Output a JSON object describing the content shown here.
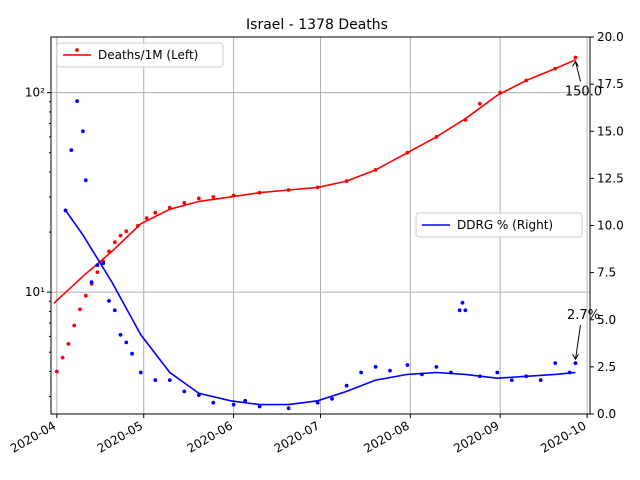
{
  "chart_data": {
    "type": "line",
    "title": "Israel - 1378 Deaths",
    "x_ticks": [
      "2020-04",
      "2020-05",
      "2020-06",
      "2020-07",
      "2020-08",
      "2020-09",
      "2020-10"
    ],
    "x_range": [
      "2020-03-30",
      "2020-10-02"
    ],
    "left_axis": {
      "scale": "log",
      "range": [
        2.45,
        190
      ],
      "ticks": [
        {
          "value": 10,
          "label": "10¹"
        },
        {
          "value": 100,
          "label": "10²"
        }
      ]
    },
    "right_axis": {
      "scale": "linear",
      "range": [
        0,
        20
      ],
      "ticks": [
        "0.0",
        "2.5",
        "5.0",
        "7.5",
        "10.0",
        "12.5",
        "15.0",
        "17.5",
        "20.0"
      ]
    },
    "grid": true,
    "legends": [
      {
        "label": "Deaths/1M (Left)",
        "position": "upper-left"
      },
      {
        "label": "DDRG % (Right)",
        "position": "center-right"
      }
    ],
    "series": [
      {
        "name": "Deaths/1M (Left)",
        "axis": "left",
        "style": "points",
        "color": "#ff0000",
        "points": [
          [
            "2020-04-01",
            4.0
          ],
          [
            "2020-04-03",
            4.7
          ],
          [
            "2020-04-05",
            5.5
          ],
          [
            "2020-04-07",
            6.8
          ],
          [
            "2020-04-09",
            8.2
          ],
          [
            "2020-04-11",
            9.6
          ],
          [
            "2020-04-13",
            11.0
          ],
          [
            "2020-04-15",
            12.6
          ],
          [
            "2020-04-17",
            14.2
          ],
          [
            "2020-04-19",
            16.0
          ],
          [
            "2020-04-21",
            17.8
          ],
          [
            "2020-04-23",
            19.2
          ],
          [
            "2020-04-25",
            20.2
          ],
          [
            "2020-04-29",
            21.5
          ],
          [
            "2020-05-02",
            23.5
          ],
          [
            "2020-05-05",
            25.0
          ],
          [
            "2020-05-10",
            26.5
          ],
          [
            "2020-05-15",
            28.0
          ],
          [
            "2020-05-20",
            29.5
          ],
          [
            "2020-05-25",
            30.0
          ],
          [
            "2020-06-01",
            30.5
          ],
          [
            "2020-06-10",
            31.5
          ],
          [
            "2020-06-20",
            32.5
          ],
          [
            "2020-06-30",
            33.5
          ],
          [
            "2020-07-10",
            36.0
          ],
          [
            "2020-07-20",
            41.0
          ],
          [
            "2020-07-31",
            50.0
          ],
          [
            "2020-08-10",
            60.0
          ],
          [
            "2020-08-20",
            73.0
          ],
          [
            "2020-08-25",
            88.0
          ],
          [
            "2020-09-01",
            100.0
          ],
          [
            "2020-09-10",
            115.0
          ],
          [
            "2020-09-20",
            132.0
          ],
          [
            "2020-09-27",
            150.0
          ]
        ]
      },
      {
        "name": "Deaths/1M (Left)",
        "axis": "left",
        "style": "line",
        "color": "#ff0000",
        "points": [
          [
            "2020-03-31",
            8.8
          ],
          [
            "2020-04-10",
            12.0
          ],
          [
            "2020-04-20",
            16.0
          ],
          [
            "2020-04-30",
            22.0
          ],
          [
            "2020-05-10",
            26.0
          ],
          [
            "2020-05-20",
            28.5
          ],
          [
            "2020-05-31",
            30.0
          ],
          [
            "2020-06-10",
            31.5
          ],
          [
            "2020-06-20",
            32.5
          ],
          [
            "2020-06-30",
            33.5
          ],
          [
            "2020-07-10",
            36.0
          ],
          [
            "2020-07-20",
            41.0
          ],
          [
            "2020-07-31",
            50.0
          ],
          [
            "2020-08-10",
            60.0
          ],
          [
            "2020-08-20",
            74.0
          ],
          [
            "2020-08-31",
            97.0
          ],
          [
            "2020-09-10",
            115.0
          ],
          [
            "2020-09-20",
            132.0
          ],
          [
            "2020-09-27",
            146.0
          ]
        ]
      },
      {
        "name": "DDRG % (Right)",
        "axis": "right",
        "style": "points",
        "color": "#0000ff",
        "points": [
          [
            "2020-04-04",
            10.8
          ],
          [
            "2020-04-06",
            14.0
          ],
          [
            "2020-04-08",
            16.6
          ],
          [
            "2020-04-10",
            15.0
          ],
          [
            "2020-04-11",
            12.4
          ],
          [
            "2020-04-13",
            7.0
          ],
          [
            "2020-04-15",
            7.9
          ],
          [
            "2020-04-17",
            8.0
          ],
          [
            "2020-04-19",
            6.0
          ],
          [
            "2020-04-21",
            5.5
          ],
          [
            "2020-04-23",
            4.2
          ],
          [
            "2020-04-25",
            3.8
          ],
          [
            "2020-04-27",
            3.2
          ],
          [
            "2020-04-30",
            2.2
          ],
          [
            "2020-05-05",
            1.8
          ],
          [
            "2020-05-10",
            1.8
          ],
          [
            "2020-05-15",
            1.2
          ],
          [
            "2020-05-20",
            1.0
          ],
          [
            "2020-05-25",
            0.6
          ],
          [
            "2020-06-01",
            0.5
          ],
          [
            "2020-06-05",
            0.7
          ],
          [
            "2020-06-10",
            0.4
          ],
          [
            "2020-06-20",
            0.3
          ],
          [
            "2020-06-30",
            0.6
          ],
          [
            "2020-07-05",
            0.8
          ],
          [
            "2020-07-10",
            1.5
          ],
          [
            "2020-07-15",
            2.2
          ],
          [
            "2020-07-20",
            2.5
          ],
          [
            "2020-07-25",
            2.3
          ],
          [
            "2020-07-31",
            2.6
          ],
          [
            "2020-08-05",
            2.1
          ],
          [
            "2020-08-10",
            2.5
          ],
          [
            "2020-08-15",
            2.2
          ],
          [
            "2020-08-18",
            5.5
          ],
          [
            "2020-08-19",
            5.9
          ],
          [
            "2020-08-20",
            5.5
          ],
          [
            "2020-08-25",
            2.0
          ],
          [
            "2020-08-31",
            2.2
          ],
          [
            "2020-09-05",
            1.8
          ],
          [
            "2020-09-10",
            2.0
          ],
          [
            "2020-09-15",
            1.8
          ],
          [
            "2020-09-20",
            2.7
          ],
          [
            "2020-09-25",
            2.2
          ],
          [
            "2020-09-27",
            2.7
          ]
        ]
      },
      {
        "name": "DDRG % (Right)",
        "axis": "right",
        "style": "line",
        "color": "#0000ff",
        "points": [
          [
            "2020-04-04",
            10.8
          ],
          [
            "2020-04-10",
            9.5
          ],
          [
            "2020-04-20",
            7.0
          ],
          [
            "2020-04-30",
            4.2
          ],
          [
            "2020-05-10",
            2.2
          ],
          [
            "2020-05-20",
            1.1
          ],
          [
            "2020-05-31",
            0.7
          ],
          [
            "2020-06-10",
            0.5
          ],
          [
            "2020-06-20",
            0.5
          ],
          [
            "2020-06-30",
            0.7
          ],
          [
            "2020-07-10",
            1.2
          ],
          [
            "2020-07-20",
            1.8
          ],
          [
            "2020-07-31",
            2.1
          ],
          [
            "2020-08-10",
            2.2
          ],
          [
            "2020-08-20",
            2.1
          ],
          [
            "2020-08-31",
            1.9
          ],
          [
            "2020-09-10",
            2.0
          ],
          [
            "2020-09-20",
            2.1
          ],
          [
            "2020-09-27",
            2.2
          ]
        ]
      }
    ],
    "annotations": [
      {
        "text": "150.0",
        "x": "2020-09-27",
        "axis": "left",
        "y": 150.0
      },
      {
        "text": "2.7%",
        "x": "2020-09-27",
        "axis": "right",
        "y": 2.7
      }
    ]
  }
}
